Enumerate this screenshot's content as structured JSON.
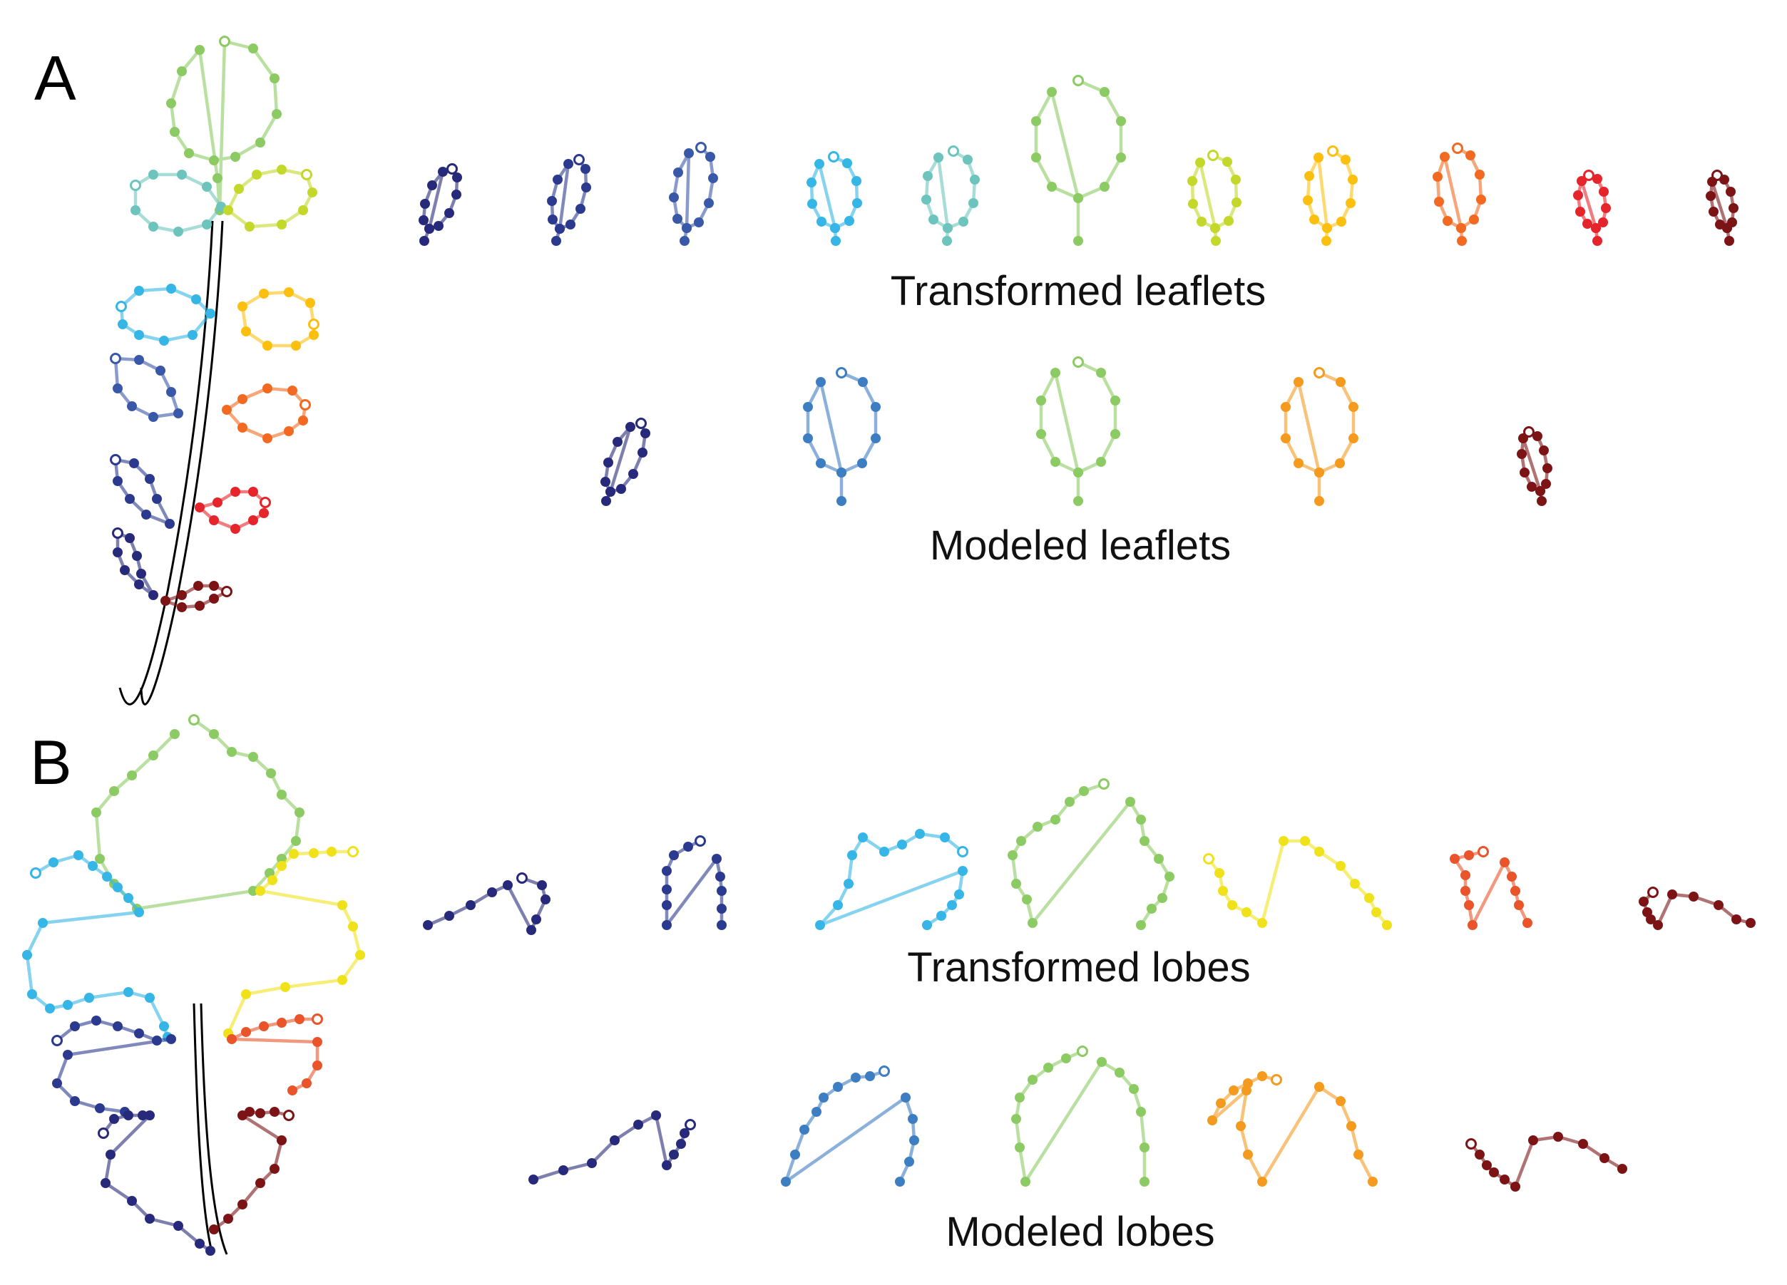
{
  "panel_a": {
    "letter": "A",
    "transformed_caption": "Transformed leaflets",
    "modeled_caption": "Modeled leaflets"
  },
  "panel_b": {
    "letter": "B",
    "transformed_caption": "Transformed lobes",
    "modeled_caption": "Modeled lobes"
  },
  "colors": {
    "navy": "#27297a",
    "dark_blue": "#2b3a8e",
    "blue": "#3a58a8",
    "mid_blue": "#3d7dc2",
    "sky": "#35b6e6",
    "teal": "#6cc4bd",
    "green": "#8ccb63",
    "lime": "#c3d82a",
    "yellow": "#f0e21a",
    "gold": "#fbbf10",
    "amber": "#f49a1e",
    "orange": "#f26a22",
    "red_orange": "#e9542a",
    "red": "#e6242b",
    "maroon": "#7c1416"
  }
}
